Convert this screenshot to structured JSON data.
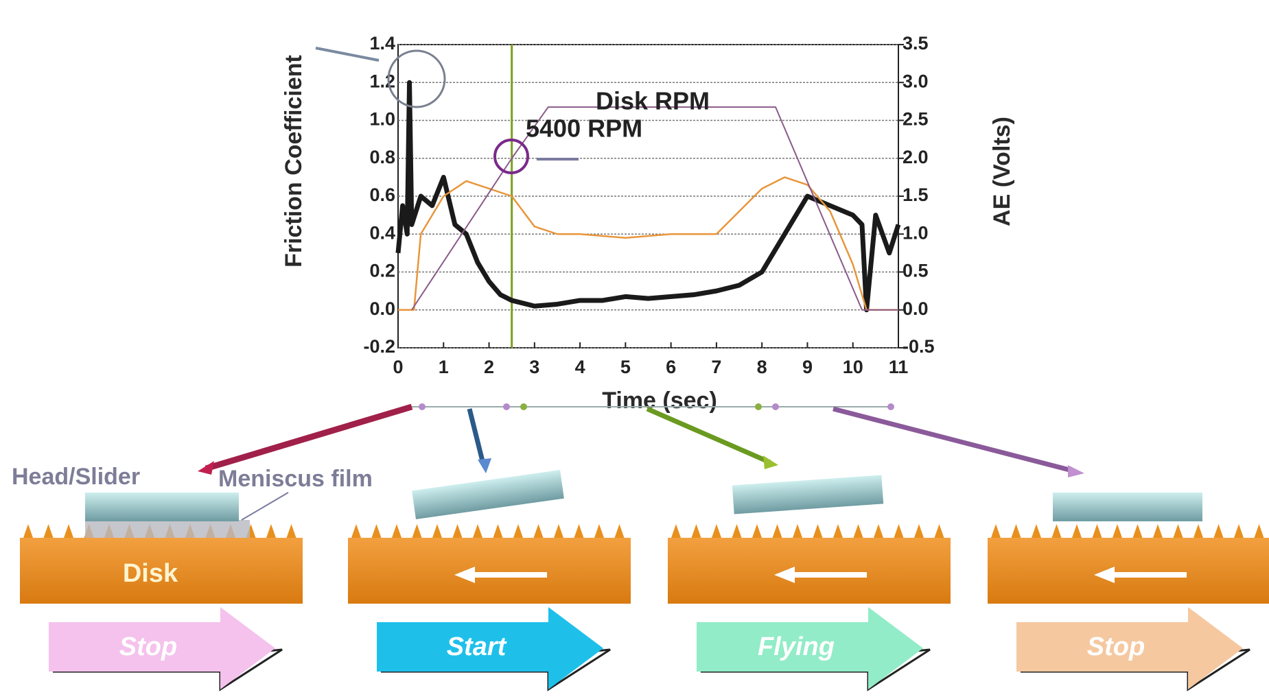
{
  "chart_data": {
    "type": "line",
    "xlabel": "Time (sec)",
    "ylabel": "Friction Coefficient",
    "y2label": "AE (Volts)",
    "xlim": [
      0,
      11
    ],
    "xticks": [
      0,
      1,
      2,
      3,
      4,
      5,
      6,
      7,
      8,
      9,
      10,
      11
    ],
    "ylim": [
      -0.2,
      1.4
    ],
    "yticks": [
      -0.2,
      {
        "value": 0,
        "label": "0.0"
      },
      0.2,
      0.4,
      0.6,
      0.8,
      {
        "value": 1,
        "label": "1.0"
      },
      1.2,
      1.4
    ],
    "y2lim": [
      -0.5,
      3.5
    ],
    "y2ticks": [
      -0.5,
      {
        "value": 0,
        "label": "0.0"
      },
      0.5,
      {
        "value": 1,
        "label": "1.0"
      },
      1.5,
      {
        "value": 2,
        "label": "2.0"
      },
      2.5,
      {
        "value": 3,
        "label": "3.0"
      },
      3.5
    ],
    "grid": true,
    "series": [
      {
        "name": "Friction Coefficient",
        "color": "#1a1a1a",
        "x": [
          0,
          0.1,
          0.2,
          0.25,
          0.3,
          0.5,
          0.75,
          1,
          1.25,
          1.5,
          1.75,
          2,
          2.25,
          2.5,
          3,
          3.5,
          4,
          4.5,
          5,
          5.5,
          6,
          6.5,
          7,
          7.5,
          8,
          8.5,
          9,
          9.5,
          10,
          10.2,
          10.3,
          10.5,
          10.8,
          11
        ],
        "values": [
          0.3,
          0.55,
          0.4,
          1.2,
          0.45,
          0.6,
          0.55,
          0.7,
          0.45,
          0.4,
          0.25,
          0.15,
          0.08,
          0.05,
          0.02,
          0.03,
          0.05,
          0.05,
          0.07,
          0.06,
          0.07,
          0.08,
          0.1,
          0.13,
          0.2,
          0.4,
          0.6,
          0.55,
          0.5,
          0.45,
          0,
          0.5,
          0.3,
          0.45
        ]
      },
      {
        "name": "AE (Volts)",
        "color": "#e8963a",
        "axis": "y2",
        "x": [
          0,
          0.35,
          0.5,
          1,
          1.5,
          2,
          2.5,
          3,
          3.5,
          4,
          5,
          6,
          7,
          7.5,
          8,
          8.5,
          9,
          9.5,
          10,
          10.3,
          11
        ],
        "values": [
          0,
          0,
          1.0,
          1.5,
          1.7,
          1.6,
          1.5,
          1.1,
          1.0,
          1.0,
          0.95,
          1.0,
          1.0,
          1.3,
          1.6,
          1.75,
          1.65,
          1.3,
          0.6,
          0,
          0
        ]
      },
      {
        "name": "Disk RPM",
        "color": "#8a5a8a",
        "x": [
          0.3,
          2.5,
          3.3,
          8.3,
          10.2,
          11
        ],
        "values": [
          0,
          0.8,
          1.07,
          1.07,
          0,
          0
        ]
      }
    ],
    "vline": 2.5,
    "vline_color": "#7aa020",
    "annotations": [
      "5400 RPM"
    ]
  },
  "diagram": {
    "head_label": "Head/Slider",
    "meniscus_label": "Meniscus film",
    "disk_label": "Disk",
    "stages": [
      "Stop",
      "Start",
      "Flying",
      "Stop"
    ]
  }
}
